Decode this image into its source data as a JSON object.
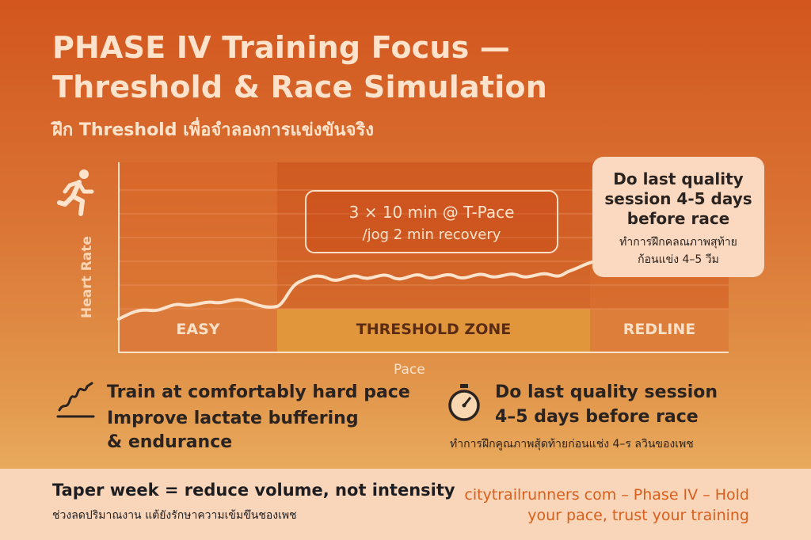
{
  "title": {
    "line1": "PHASE IV Training Focus —",
    "line2": "Threshold & Race Simulation",
    "subtitle": "ฝึก Threshold เพื่อจำลองการแข่งขันจริง"
  },
  "chart": {
    "y_label": "Heart Rate",
    "x_label": "Pace",
    "zones": [
      {
        "label": "EASY"
      },
      {
        "label": "THRESHOLD ZONE"
      },
      {
        "label": "REDLINE"
      }
    ],
    "workout": {
      "line1": "3 × 10 min @ T-Pace",
      "line2": "/jog 2 min recovery"
    },
    "note": {
      "title": "Do last quality session 4-5 days before race",
      "thai_line1": "ทำการฝึกคลณภาพสุท้าย",
      "thai_line2": "ก้อนแข่ง 4–5 วีม"
    }
  },
  "points": {
    "left": {
      "line1": "Train at comfortably hard pace",
      "line2": "Improve lactate buffering",
      "line3": "& endurance"
    },
    "right": {
      "line1": "Do last quality session",
      "line2": "4–5 days before race",
      "thai": "ทำการฝึกคูณภาพสุ้ดท้ายก่อนแช่ง 4–ร ลวินของเพช"
    }
  },
  "footer": {
    "main": "Taper week = reduce volume, not intensity",
    "thai": "ช่วงลดปริมาณงาน แต้ยังรักษาความเข้มขึนชองเพช",
    "site_line1": "citytrailrunners com – Phase IV – Hold",
    "site_line2": "your pace, trust your training"
  },
  "colors": {
    "accent": "#d2561e",
    "cream": "#fde3cc",
    "footer_bg": "#f9d6ba",
    "link": "#d95f1c"
  }
}
